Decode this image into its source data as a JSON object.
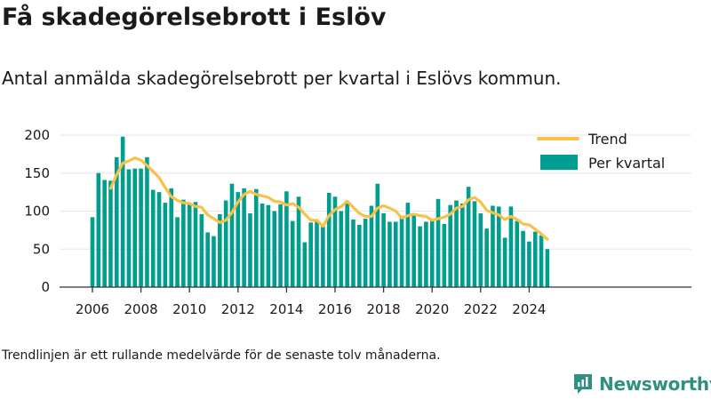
{
  "title": "Få skadegörelsebrott i Eslöv",
  "subtitle": "Antal anmälda skadegörelsebrott per kvartal i Eslövs kommun.",
  "footnote": "Trendlinjen är ett rullande medelvärde för de senaste tolv månaderna.",
  "brand": {
    "name": "Newsworthy",
    "logo_icon": "newsworthy-logo-icon"
  },
  "colors": {
    "bar": "#009e8e",
    "trend": "#f9c04a",
    "axis": "#333333",
    "grid": "#e6e6e6"
  },
  "chart_data": {
    "type": "bar",
    "x_start": "2006 Q1",
    "ylim": [
      0,
      200
    ],
    "yticks": [
      0,
      50,
      100,
      150,
      200
    ],
    "xticks": [
      "2006",
      "2008",
      "2010",
      "2012",
      "2014",
      "2016",
      "2018",
      "2020",
      "2022",
      "2024"
    ],
    "legend": {
      "placement": "top-right",
      "entries": [
        "Trend",
        "Per kvartal"
      ]
    },
    "series": [
      {
        "name": "Per kvartal",
        "type": "bar",
        "values": [
          92,
          150,
          141,
          140,
          171,
          198,
          155,
          156,
          156,
          171,
          128,
          125,
          111,
          130,
          92,
          115,
          110,
          112,
          96,
          72,
          67,
          96,
          114,
          136,
          125,
          130,
          97,
          129,
          110,
          108,
          100,
          109,
          126,
          87,
          119,
          59,
          85,
          86,
          80,
          124,
          119,
          100,
          110,
          89,
          82,
          90,
          107,
          136,
          97,
          86,
          86,
          92,
          111,
          95,
          80,
          86,
          87,
          116,
          83,
          108,
          114,
          110,
          132,
          113,
          97,
          77,
          107,
          106,
          65,
          106,
          87,
          74,
          60,
          73,
          68,
          50
        ]
      },
      {
        "name": "Trend",
        "type": "line",
        "values": [
          null,
          null,
          null,
          130,
          148,
          163,
          166,
          170,
          167,
          160,
          152,
          144,
          131,
          119,
          114,
          111,
          110,
          106,
          105,
          95,
          90,
          85,
          88,
          98,
          112,
          122,
          126,
          122,
          120,
          118,
          113,
          112,
          108,
          110,
          105,
          96,
          88,
          88,
          80,
          94,
          102,
          106,
          113,
          105,
          97,
          93,
          93,
          104,
          107,
          104,
          100,
          91,
          94,
          96,
          94,
          93,
          88,
          90,
          92,
          96,
          104,
          106,
          115,
          118,
          112,
          101,
          98,
          95,
          89,
          93,
          89,
          83,
          82,
          76,
          70,
          63
        ]
      }
    ]
  }
}
